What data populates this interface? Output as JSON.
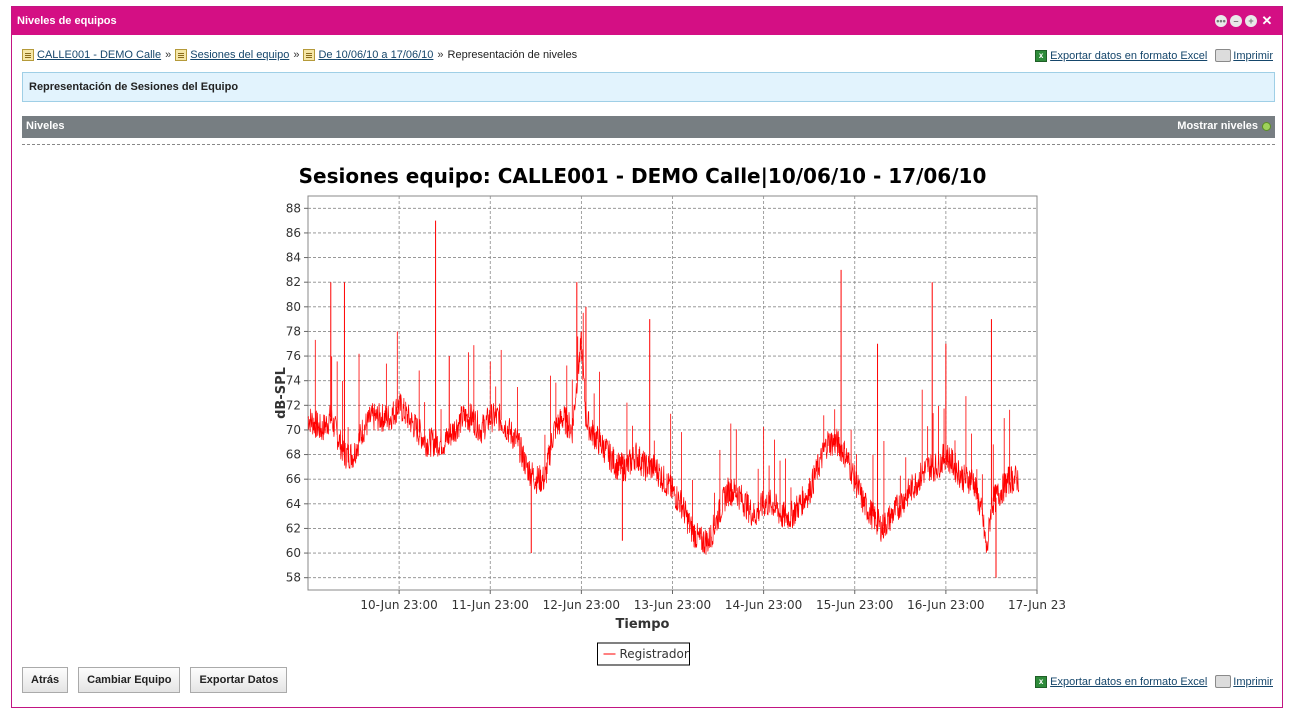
{
  "window": {
    "title": "Niveles de equipos"
  },
  "breadcrumb": {
    "items": [
      "CALLE001 - DEMO Calle",
      "Sesiones del equipo",
      "De 10/06/10 a 17/06/10"
    ],
    "current": "Representación de niveles",
    "separator": "»"
  },
  "links": {
    "export_excel": "Exportar datos en formato Excel",
    "print": "Imprimir"
  },
  "panel": {
    "title": "Representación de Sesiones del Equipo"
  },
  "levels_bar": {
    "label": "Niveles",
    "toggle": "Mostrar niveles"
  },
  "buttons": {
    "back": "Atrás",
    "change": "Cambiar Equipo",
    "export": "Exportar Datos"
  },
  "colors": {
    "title_bar": "#d40f84",
    "series": "#ff0000",
    "bar": "#777e82",
    "panel": "#e2f3fd"
  },
  "chart_data": {
    "type": "line",
    "title": "Sesiones equipo: CALLE001 - DEMO Calle|10/06/10 - 17/06/10",
    "xlabel": "Tiempo",
    "ylabel": "dB-SPL",
    "ylim": [
      57,
      89
    ],
    "yticks": [
      58,
      60,
      62,
      64,
      66,
      68,
      70,
      72,
      74,
      76,
      78,
      80,
      82,
      84,
      86,
      88
    ],
    "xlim": [
      0,
      8.0
    ],
    "xtick_labels": [
      "10-Jun 23:00",
      "11-Jun 23:00",
      "12-Jun 23:00",
      "13-Jun 23:00",
      "14-Jun 23:00",
      "15-Jun 23:00",
      "16-Jun 23:00",
      "17-Jun 23"
    ],
    "xtick_positions": [
      1,
      2,
      3,
      4,
      5,
      6,
      7,
      8
    ],
    "grid": true,
    "legend": "bottom-center",
    "series": [
      {
        "name": "Registrador",
        "x": [
          0.0,
          0.15,
          0.25,
          0.3,
          0.35,
          0.4,
          0.5,
          0.6,
          0.7,
          0.8,
          0.9,
          1.0,
          1.1,
          1.2,
          1.3,
          1.4,
          1.5,
          1.6,
          1.7,
          1.8,
          1.9,
          2.0,
          2.1,
          2.2,
          2.3,
          2.4,
          2.5,
          2.6,
          2.7,
          2.8,
          2.9,
          2.95,
          3.0,
          3.05,
          3.1,
          3.2,
          3.3,
          3.4,
          3.5,
          3.6,
          3.7,
          3.8,
          3.9,
          4.0,
          4.1,
          4.2,
          4.3,
          4.4,
          4.5,
          4.6,
          4.7,
          4.8,
          4.9,
          5.0,
          5.1,
          5.2,
          5.3,
          5.4,
          5.5,
          5.6,
          5.7,
          5.8,
          5.9,
          6.0,
          6.1,
          6.2,
          6.3,
          6.4,
          6.5,
          6.6,
          6.7,
          6.8,
          6.9,
          7.0,
          7.1,
          7.2,
          7.3,
          7.4,
          7.45,
          7.5,
          7.6,
          7.7,
          7.8
        ],
        "y": [
          71,
          70,
          71,
          70,
          69,
          68,
          68,
          70,
          71,
          71,
          71,
          72,
          71,
          70,
          69,
          69,
          69,
          70,
          71,
          71,
          70,
          71,
          71,
          70,
          69,
          67,
          66,
          66,
          70,
          71,
          70,
          74,
          77,
          71,
          70,
          69,
          68,
          67,
          67,
          68,
          67,
          67,
          66,
          65,
          64,
          62,
          61,
          61,
          63,
          65,
          65,
          64,
          63,
          64,
          64,
          63,
          63,
          64,
          65,
          67,
          69,
          69,
          68,
          66,
          64,
          63,
          62,
          63,
          64,
          65,
          66,
          67,
          67,
          68,
          67,
          66,
          66,
          63,
          60,
          64,
          65,
          66,
          66
        ],
        "spikes": [
          {
            "x": 0.25,
            "y": 82
          },
          {
            "x": 0.4,
            "y": 82
          },
          {
            "x": 1.4,
            "y": 87
          },
          {
            "x": 1.55,
            "y": 76
          },
          {
            "x": 2.45,
            "y": 60
          },
          {
            "x": 2.95,
            "y": 82
          },
          {
            "x": 3.05,
            "y": 80
          },
          {
            "x": 3.45,
            "y": 61
          },
          {
            "x": 3.75,
            "y": 79
          },
          {
            "x": 5.85,
            "y": 83
          },
          {
            "x": 6.25,
            "y": 77
          },
          {
            "x": 6.85,
            "y": 82
          },
          {
            "x": 7.0,
            "y": 77
          },
          {
            "x": 7.5,
            "y": 79
          },
          {
            "x": 7.55,
            "y": 58
          }
        ]
      }
    ]
  }
}
